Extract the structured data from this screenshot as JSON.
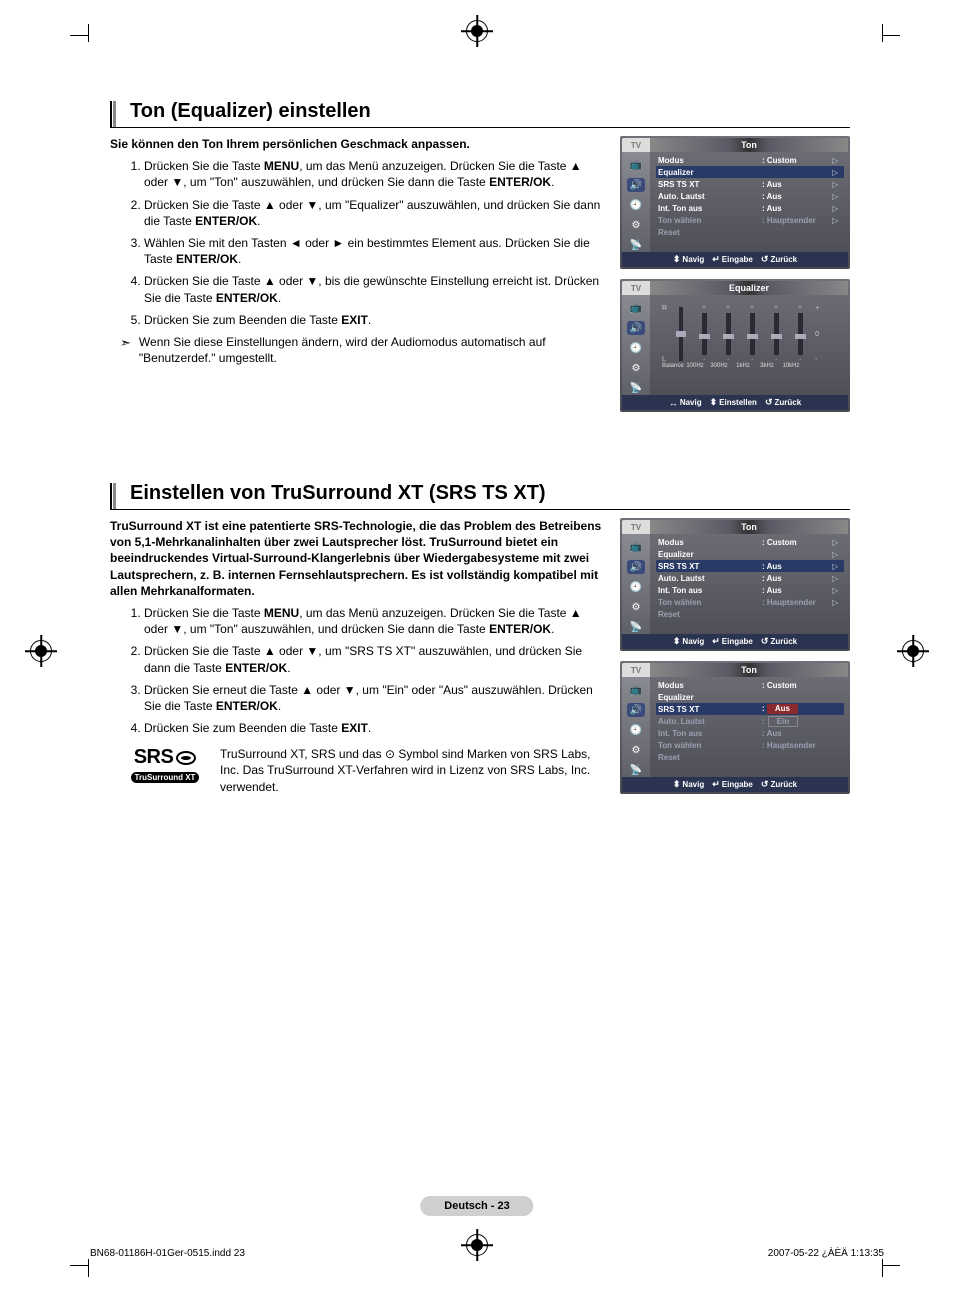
{
  "crop_glyph": "⊕",
  "section1": {
    "title": "Ton (Equalizer) einstellen",
    "intro": "Sie können den Ton Ihrem persönlichen Geschmack anpassen.",
    "steps": [
      "Drücken Sie die Taste <b>MENU</b>, um das Menü anzuzeigen. Drücken Sie die Taste ▲ oder ▼, um \"Ton\" auszuwählen, und drücken Sie dann die Taste <b>ENTER/OK</b>.",
      "Drücken Sie die Taste ▲ oder ▼, um \"Equalizer\" auszuwählen, und drücken Sie dann die Taste <b>ENTER/OK</b>.",
      "Wählen Sie mit den Tasten ◄ oder ► ein bestimmtes Element aus. Drücken Sie die Taste <b>ENTER/OK</b>.",
      "Drücken Sie die Taste ▲ oder ▼, bis die gewünschte Einstellung erreicht ist. Drücken Sie die Taste <b>ENTER/OK</b>.",
      "Drücken Sie zum Beenden die Taste <b>EXIT</b>."
    ],
    "note_bullet": "➣",
    "note": "Wenn Sie diese Einstellungen ändern, wird der Audiomodus automatisch auf \"Benutzerdef.\" umgestellt."
  },
  "section2": {
    "title": "Einstellen von TruSurround XT (SRS TS XT)",
    "intro": "TruSurround XT ist eine patentierte SRS-Technologie, die das Problem des Betreibens von 5,1-Mehrkanalinhalten über zwei Lautsprecher löst. TruSurround bietet ein beeindruckendes Virtual-Surround-Klangerlebnis über Wiedergabesysteme mit zwei Lautsprechern, z. B. internen Fernsehlautsprechern. Es ist vollständig kompatibel mit allen Mehrkanalformaten.",
    "steps": [
      "Drücken Sie die Taste <b>MENU</b>, um das Menü anzuzeigen. Drücken Sie die Taste ▲ oder ▼, um \"Ton\" auszuwählen, und drücken Sie dann die Taste <b>ENTER/OK</b>.",
      "Drücken Sie die Taste ▲ oder ▼, um \"SRS TS XT\" auszuwählen, und drücken Sie dann die Taste <b>ENTER/OK</b>.",
      "Drücken Sie erneut die Taste ▲ oder ▼, um \"Ein\" oder \"Aus\" auszuwählen. Drücken Sie die Taste <b>ENTER/OK</b>.",
      "Drücken Sie zum Beenden die Taste <b>EXIT</b>."
    ],
    "srs_label": "SRS",
    "srs_pill": "TruSurround XT",
    "srs_text": "TruSurround XT, SRS und das ⊙ Symbol sind Marken von SRS Labs, Inc. Das TruSurround XT-Verfahren wird in Lizenz von SRS Labs, Inc. verwendet."
  },
  "osd_common": {
    "tv": "TV",
    "ton": "Ton",
    "equalizer": "Equalizer",
    "navig": "Navig",
    "eingabe": "Eingabe",
    "zuruck": "Zurück",
    "einstellen": "Einstellen",
    "updown": "◆",
    "enter_sym": "↵",
    "back_sym": "↺",
    "lr_sym": "◄►"
  },
  "osd1": {
    "rows": [
      {
        "lbl": "Modus",
        "val": ": Custom",
        "arr": "▷",
        "sel": false,
        "dim": false
      },
      {
        "lbl": "Equalizer",
        "val": "",
        "arr": "▷",
        "sel": true,
        "dim": false
      },
      {
        "lbl": "SRS TS XT",
        "val": ": Aus",
        "arr": "▷",
        "sel": false,
        "dim": false
      },
      {
        "lbl": "Auto. Lautst",
        "val": ": Aus",
        "arr": "▷",
        "sel": false,
        "dim": false
      },
      {
        "lbl": "Int. Ton aus",
        "val": ": Aus",
        "arr": "▷",
        "sel": false,
        "dim": false
      },
      {
        "lbl": "Ton wählen",
        "val": ": Hauptsender",
        "arr": "▷",
        "sel": false,
        "dim": true
      },
      {
        "lbl": "Reset",
        "val": "",
        "arr": "",
        "sel": false,
        "dim": true
      }
    ]
  },
  "osd_eq": {
    "title": "Equalizer",
    "R": "R",
    "L": "L",
    "plus": "+",
    "zero": "0",
    "minus": "-",
    "bands": [
      "Balance",
      "100Hz",
      "300Hz",
      "1kHz",
      "3kHz",
      "10kHz"
    ],
    "thumb_pos": [
      50,
      50,
      50,
      50,
      50,
      50
    ]
  },
  "osd3": {
    "rows": [
      {
        "lbl": "Modus",
        "val": ": Custom",
        "arr": "▷",
        "sel": false,
        "dim": false
      },
      {
        "lbl": "Equalizer",
        "val": "",
        "arr": "▷",
        "sel": false,
        "dim": false
      },
      {
        "lbl": "SRS TS XT",
        "val": ": Aus",
        "arr": "▷",
        "sel": true,
        "dim": false
      },
      {
        "lbl": "Auto. Lautst",
        "val": ": Aus",
        "arr": "▷",
        "sel": false,
        "dim": false
      },
      {
        "lbl": "Int. Ton aus",
        "val": ": Aus",
        "arr": "▷",
        "sel": false,
        "dim": false
      },
      {
        "lbl": "Ton wählen",
        "val": ": Hauptsender",
        "arr": "▷",
        "sel": false,
        "dim": true
      },
      {
        "lbl": "Reset",
        "val": "",
        "arr": "",
        "sel": false,
        "dim": true
      }
    ]
  },
  "osd4": {
    "rows": [
      {
        "lbl": "Modus",
        "val": ": Custom",
        "arr": "",
        "sel": false,
        "dim": false
      },
      {
        "lbl": "Equalizer",
        "val": "",
        "arr": "",
        "sel": false,
        "dim": false
      },
      {
        "lbl": "SRS TS XT",
        "val": "__OPT__",
        "arr": "",
        "sel": true,
        "dim": false
      },
      {
        "lbl": "Auto. Lautst",
        "val": ":",
        "arr": "",
        "sel": false,
        "dim": true,
        "opt2": "Ein"
      },
      {
        "lbl": "Int. Ton aus",
        "val": ": Aus",
        "arr": "",
        "sel": false,
        "dim": true
      },
      {
        "lbl": "Ton wählen",
        "val": ": Hauptsender",
        "arr": "",
        "sel": false,
        "dim": true
      },
      {
        "lbl": "Reset",
        "val": "",
        "arr": "",
        "sel": false,
        "dim": true
      }
    ],
    "opt_sel": "Aus"
  },
  "icons": [
    "📺",
    "🔊",
    "🕘",
    "⚙",
    "📡"
  ],
  "page_number": "Deutsch - 23",
  "footer_left": "BN68-01186H-01Ger-0515.indd   23",
  "footer_right": "2007-05-22   ¿ÀÈÄ 1:13:35"
}
